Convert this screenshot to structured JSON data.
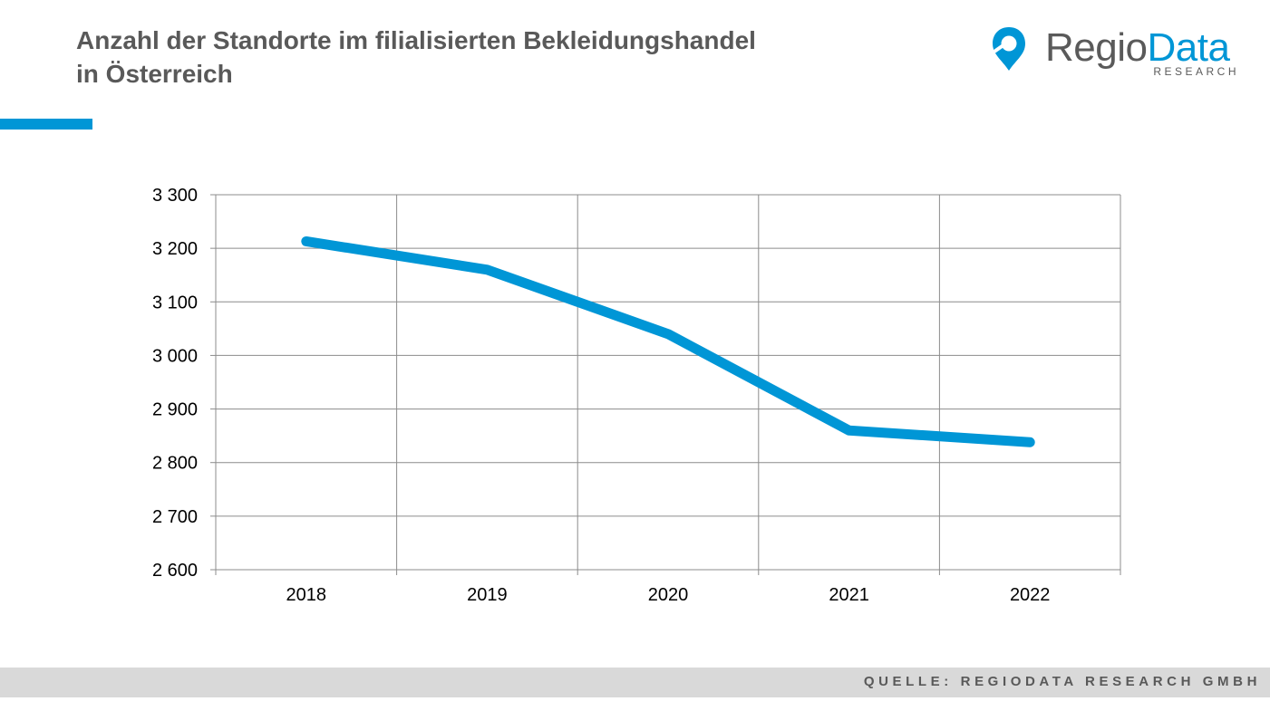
{
  "header": {
    "title_line1": "Anzahl der Standorte im filialisierten Bekleidungshandel",
    "title_line2": "in Österreich"
  },
  "logo": {
    "name_part1": "Regio",
    "name_part2": "Data",
    "subtitle": "RESEARCH",
    "icon": "map-pin-icon"
  },
  "footer": {
    "source": "QUELLE: REGIODATA RESEARCH GMBH"
  },
  "colors": {
    "accent": "#0096d6",
    "title_text": "#595959",
    "footer_bg": "#d9d9d9",
    "grid": "#8c8c8c"
  },
  "chart_data": {
    "type": "line",
    "title": "Anzahl der Standorte im filialisierten Bekleidungshandel in Österreich",
    "categories": [
      "2018",
      "2019",
      "2020",
      "2021",
      "2022"
    ],
    "series": [
      {
        "values": [
          3213,
          3160,
          3040,
          2860,
          2838
        ]
      }
    ],
    "yticks": [
      2600,
      2700,
      2800,
      2900,
      3000,
      3100,
      3200,
      3300
    ],
    "ytick_labels": [
      "2 600",
      "2 700",
      "2 800",
      "2 900",
      "3 000",
      "3 100",
      "3 200",
      "3 300"
    ],
    "ylim": [
      2600,
      3300
    ],
    "xlabel": "",
    "ylabel": "",
    "grid": true,
    "legend": "none",
    "line_color": "#0096d6"
  }
}
